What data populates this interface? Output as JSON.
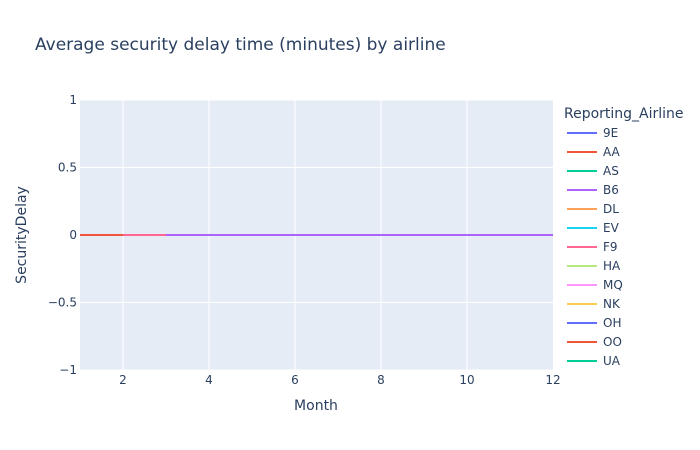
{
  "chart_data": {
    "type": "line",
    "title": "Average security delay time (minutes) by airline",
    "xlabel": "Month",
    "ylabel": "SecurityDelay",
    "xlim": [
      1,
      12
    ],
    "ylim": [
      -1,
      1
    ],
    "x_ticks": [
      2,
      4,
      6,
      8,
      10,
      12
    ],
    "y_ticks": [
      -1,
      -0.5,
      0,
      0.5,
      1
    ],
    "y_tick_labels": [
      "−1",
      "−0.5",
      "0",
      "0.5",
      "1"
    ],
    "grid": true,
    "plot_background": "#e5ecf6",
    "legend": {
      "title": "Reporting_Airline",
      "placement": "right"
    },
    "series": [
      {
        "name": "9E",
        "color": "#636efa",
        "x": [],
        "y": []
      },
      {
        "name": "AA",
        "color": "#ef553b",
        "x": [
          1,
          2,
          3
        ],
        "y": [
          0,
          0,
          0
        ]
      },
      {
        "name": "AS",
        "color": "#00cc96",
        "x": [
          8,
          9,
          10
        ],
        "y": [
          0,
          0,
          0
        ]
      },
      {
        "name": "B6",
        "color": "#ab63fa",
        "x": [
          3,
          4,
          5,
          6,
          7,
          8,
          9,
          10,
          11,
          12
        ],
        "y": [
          0,
          0,
          0,
          0,
          0,
          0,
          0,
          0,
          0,
          0
        ]
      },
      {
        "name": "DL",
        "color": "#ffa15a",
        "x": [],
        "y": []
      },
      {
        "name": "EV",
        "color": "#19d3f3",
        "x": [],
        "y": []
      },
      {
        "name": "F9",
        "color": "#ff6692",
        "x": [
          2,
          3
        ],
        "y": [
          0,
          0
        ]
      },
      {
        "name": "HA",
        "color": "#b6e880",
        "x": [],
        "y": []
      },
      {
        "name": "MQ",
        "color": "#ff97ff",
        "x": [],
        "y": []
      },
      {
        "name": "NK",
        "color": "#fecb52",
        "x": [],
        "y": []
      },
      {
        "name": "OH",
        "color": "#636efa",
        "x": [],
        "y": []
      },
      {
        "name": "OO",
        "color": "#ef553b",
        "x": [],
        "y": []
      },
      {
        "name": "UA",
        "color": "#00cc96",
        "x": [],
        "y": []
      }
    ]
  }
}
